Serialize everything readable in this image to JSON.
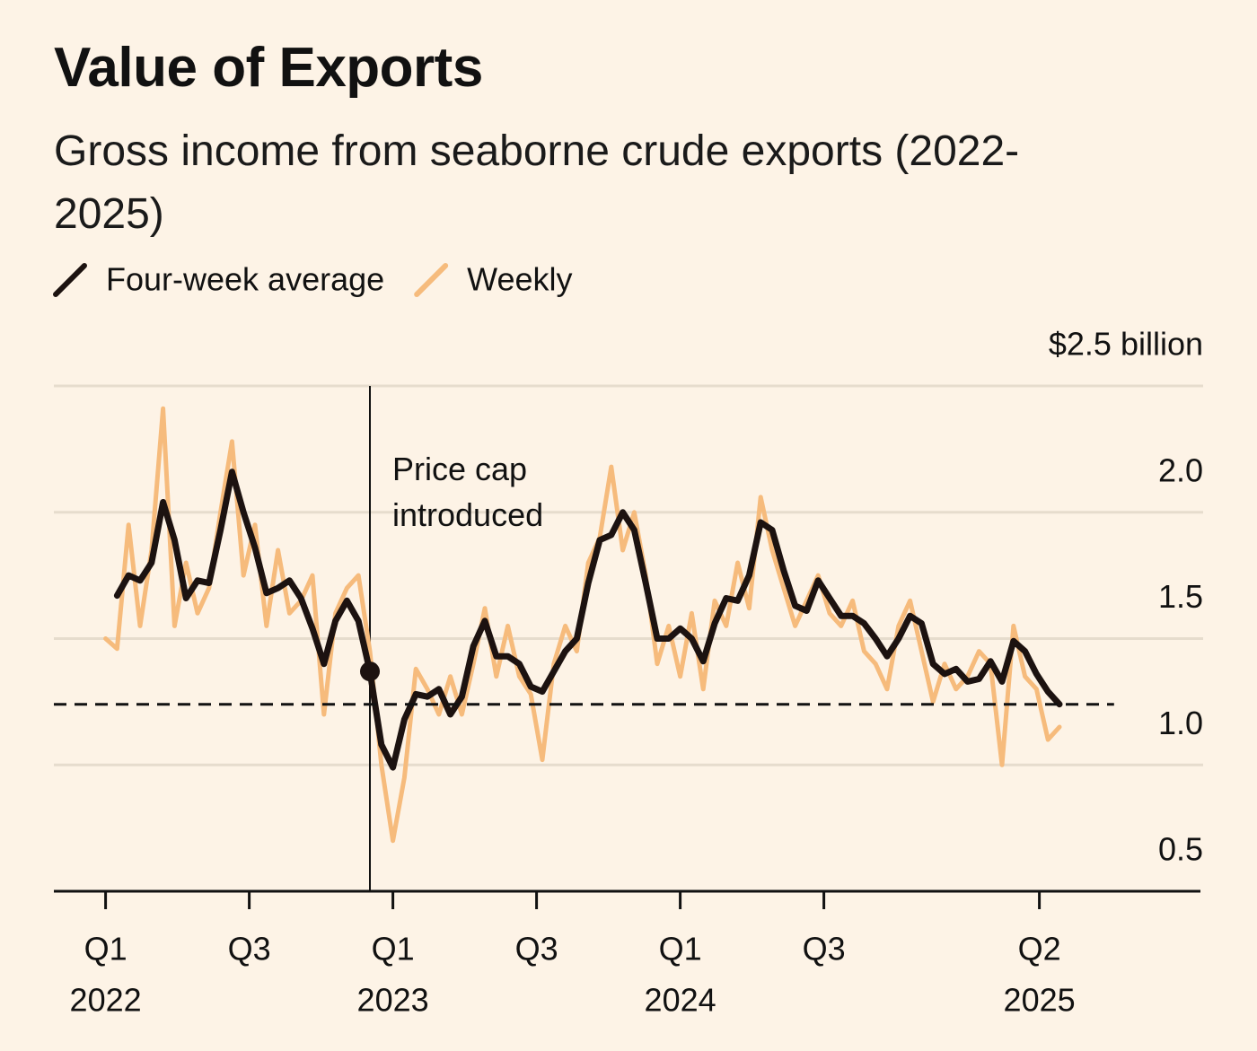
{
  "chart_data": {
    "type": "line",
    "title": "Value of Exports",
    "subtitle": "Gross income from seaborne crude exports (2022-2025)",
    "x": [
      2022.0,
      2022.04,
      2022.08,
      2022.12,
      2022.16,
      2022.2,
      2022.24,
      2022.28,
      2022.32,
      2022.36,
      2022.4,
      2022.44,
      2022.48,
      2022.52,
      2022.56,
      2022.6,
      2022.64,
      2022.68,
      2022.72,
      2022.76,
      2022.8,
      2022.84,
      2022.88,
      2022.92,
      2022.96,
      2023.0,
      2023.04,
      2023.08,
      2023.12,
      2023.16,
      2023.2,
      2023.24,
      2023.28,
      2023.32,
      2023.36,
      2023.4,
      2023.44,
      2023.48,
      2023.52,
      2023.56,
      2023.6,
      2023.64,
      2023.68,
      2023.72,
      2023.76,
      2023.8,
      2023.84,
      2023.88,
      2023.92,
      2023.96,
      2024.0,
      2024.04,
      2024.08,
      2024.12,
      2024.16,
      2024.2,
      2024.24,
      2024.28,
      2024.32,
      2024.36,
      2024.4,
      2024.44,
      2024.48,
      2024.52,
      2024.56,
      2024.6,
      2024.64,
      2024.68,
      2024.72,
      2024.76,
      2024.8,
      2024.84,
      2024.88,
      2024.92,
      2024.96,
      2025.0,
      2025.04,
      2025.08,
      2025.12,
      2025.16,
      2025.2,
      2025.24,
      2025.28,
      2025.32
    ],
    "series": [
      {
        "name": "Four-week average",
        "color": "#1c1210",
        "values": [
          null,
          1.67,
          1.75,
          1.73,
          1.8,
          2.04,
          1.89,
          1.66,
          1.73,
          1.72,
          1.93,
          2.16,
          2.0,
          1.86,
          1.68,
          1.7,
          1.73,
          1.66,
          1.54,
          1.4,
          1.57,
          1.65,
          1.57,
          1.37,
          1.08,
          0.99,
          1.18,
          1.28,
          1.27,
          1.3,
          1.2,
          1.27,
          1.47,
          1.57,
          1.43,
          1.43,
          1.4,
          1.31,
          1.29,
          1.37,
          1.45,
          1.5,
          1.72,
          1.89,
          1.91,
          2.0,
          1.93,
          1.72,
          1.5,
          1.5,
          1.54,
          1.5,
          1.41,
          1.56,
          1.66,
          1.65,
          1.75,
          1.96,
          1.93,
          1.77,
          1.63,
          1.61,
          1.73,
          1.66,
          1.59,
          1.59,
          1.56,
          1.5,
          1.43,
          1.5,
          1.59,
          1.56,
          1.4,
          1.36,
          1.38,
          1.33,
          1.34,
          1.41,
          1.33,
          1.49,
          1.45,
          1.36,
          1.29,
          1.24
        ]
      },
      {
        "name": "Weekly",
        "color": "#f6bb7c",
        "values": [
          1.5,
          1.46,
          1.95,
          1.55,
          1.85,
          2.41,
          1.55,
          1.8,
          1.6,
          1.7,
          2.0,
          2.28,
          1.75,
          1.95,
          1.55,
          1.85,
          1.6,
          1.65,
          1.75,
          1.2,
          1.6,
          1.7,
          1.75,
          1.45,
          1.0,
          0.7,
          0.95,
          1.38,
          1.3,
          1.2,
          1.35,
          1.2,
          1.4,
          1.62,
          1.35,
          1.55,
          1.35,
          1.28,
          1.02,
          1.4,
          1.55,
          1.45,
          1.8,
          1.9,
          2.18,
          1.85,
          2.0,
          1.75,
          1.4,
          1.55,
          1.35,
          1.6,
          1.3,
          1.65,
          1.55,
          1.8,
          1.62,
          2.06,
          1.85,
          1.7,
          1.55,
          1.65,
          1.75,
          1.6,
          1.55,
          1.65,
          1.45,
          1.4,
          1.3,
          1.55,
          1.65,
          1.45,
          1.25,
          1.4,
          1.3,
          1.35,
          1.45,
          1.4,
          1.0,
          1.55,
          1.35,
          1.3,
          1.1,
          1.15
        ]
      }
    ],
    "xlim": [
      2021.82,
      2025.82
    ],
    "xticks": [
      {
        "value": 2022.0,
        "label": "Q1"
      },
      {
        "value": 2022.5,
        "label": "Q3"
      },
      {
        "value": 2023.0,
        "label": "Q1"
      },
      {
        "value": 2023.5,
        "label": "Q3"
      },
      {
        "value": 2024.0,
        "label": "Q1"
      },
      {
        "value": 2024.5,
        "label": "Q3"
      },
      {
        "value": 2025.25,
        "label": "Q2"
      }
    ],
    "year_labels": [
      {
        "value": 2022.0,
        "label": "2022"
      },
      {
        "value": 2023.0,
        "label": "2023"
      },
      {
        "value": 2024.0,
        "label": "2024"
      },
      {
        "value": 2025.25,
        "label": "2025"
      }
    ],
    "ylim": [
      0.5,
      2.5
    ],
    "yticks": [
      0.5,
      {
        "value": 1.0,
        "label": "1.0"
      },
      1.5,
      {
        "value": 2.0,
        "label": "2.0"
      },
      {
        "value": 2.5,
        "label": "$2.5 billion"
      }
    ],
    "grid": true,
    "reference_line": {
      "y": 1.24,
      "x": [
        2021.82,
        2025.51
      ]
    },
    "annotation": {
      "x": 2022.92,
      "label": "Price cap introduced"
    },
    "marker": {
      "x": 2022.92,
      "y": 1.37
    }
  }
}
